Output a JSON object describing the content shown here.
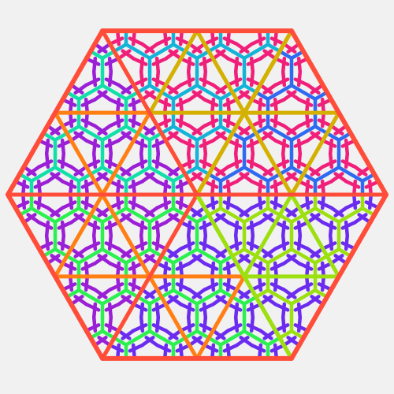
{
  "figure": {
    "description_visible_text": "",
    "background": "#f2f1f2",
    "outline_color": "#ff4d3a",
    "colors": {
      "red": "#ff4d3a",
      "orange": "#ff7f14",
      "gold": "#d4b000",
      "cyan": "#13b4d8",
      "blue": "#2f6bf0",
      "pink": "#f0207a",
      "magenta": "#d41ec8",
      "violet": "#9a1fd6",
      "purple": "#6b2cf0",
      "green": "#2cf050",
      "lime": "#9ce010",
      "teal": "#10e0a8"
    },
    "sectors": [
      {
        "name": "top",
        "primary": "cyan",
        "accent": "pink",
        "frame": "gold"
      },
      {
        "name": "top-right",
        "primary": "blue",
        "accent": "pink",
        "frame": "gold"
      },
      {
        "name": "bottom-right",
        "primary": "lime",
        "accent": "purple",
        "frame": "lime"
      },
      {
        "name": "bottom",
        "primary": "green",
        "accent": "purple",
        "frame": "orange"
      },
      {
        "name": "bottom-left",
        "primary": "green",
        "accent": "violet",
        "frame": "orange"
      },
      {
        "name": "top-left",
        "primary": "teal",
        "accent": "violet",
        "frame": "orange"
      }
    ]
  }
}
